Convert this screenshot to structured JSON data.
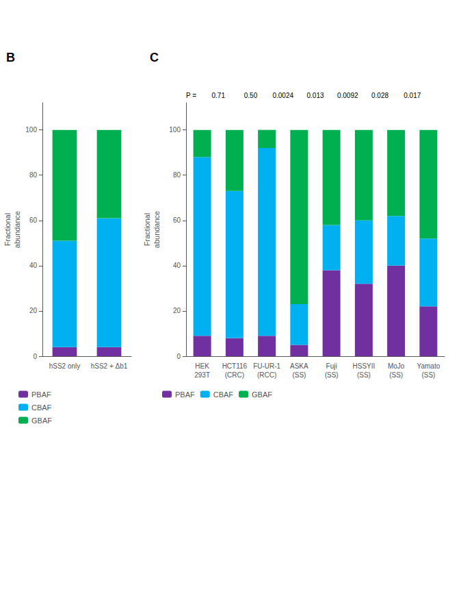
{
  "chart_data": [
    {
      "type": "bar",
      "title": "B",
      "categories": [
        "hSS2 only",
        "hSS2 + Δb1"
      ],
      "series": [
        {
          "name": "PBAF",
          "color": "#7030a0",
          "values": [
            4,
            4
          ]
        },
        {
          "name": "CBAF",
          "color": "#00b0f0",
          "values": [
            47,
            57
          ]
        },
        {
          "name": "GBAF",
          "color": "#00b050",
          "values": [
            49,
            39
          ]
        }
      ],
      "stacked": true,
      "ylabel": "Fractional\nabundance",
      "ylim": [
        0,
        112
      ],
      "yticks": [
        0,
        20,
        40,
        60,
        80,
        100
      ],
      "grid": false,
      "legend": "lower left"
    },
    {
      "type": "bar",
      "title": "C",
      "categories": [
        "HEK\n293T",
        "HCT116\n(CRC)",
        "FU-UR-1\n(RCC)",
        "ASKA\n(SS)",
        "Fuji\n(SS)",
        "HSSYII\n(SS)",
        "MoJo\n(SS)",
        "Yamato\n(SS)"
      ],
      "series": [
        {
          "name": "PBAF",
          "color": "#7030a0",
          "values": [
            9,
            8,
            9,
            5,
            38,
            32,
            40,
            22
          ]
        },
        {
          "name": "CBAF",
          "color": "#00b0f0",
          "values": [
            79,
            65,
            83,
            18,
            20,
            28,
            22,
            30
          ]
        },
        {
          "name": "GBAF",
          "color": "#00b050",
          "values": [
            12,
            27,
            8,
            77,
            42,
            40,
            38,
            48
          ]
        }
      ],
      "stacked": true,
      "ylabel": "Fractional\nabundance",
      "ylim": [
        0,
        112
      ],
      "yticks": [
        0,
        20,
        40,
        60,
        80,
        100
      ],
      "annotations": [
        "P =",
        "0.71",
        "0.50",
        "0.0024",
        "0.013",
        "0.0092",
        "0.028",
        "0.017"
      ],
      "grid": false,
      "legend": "lower left"
    }
  ]
}
